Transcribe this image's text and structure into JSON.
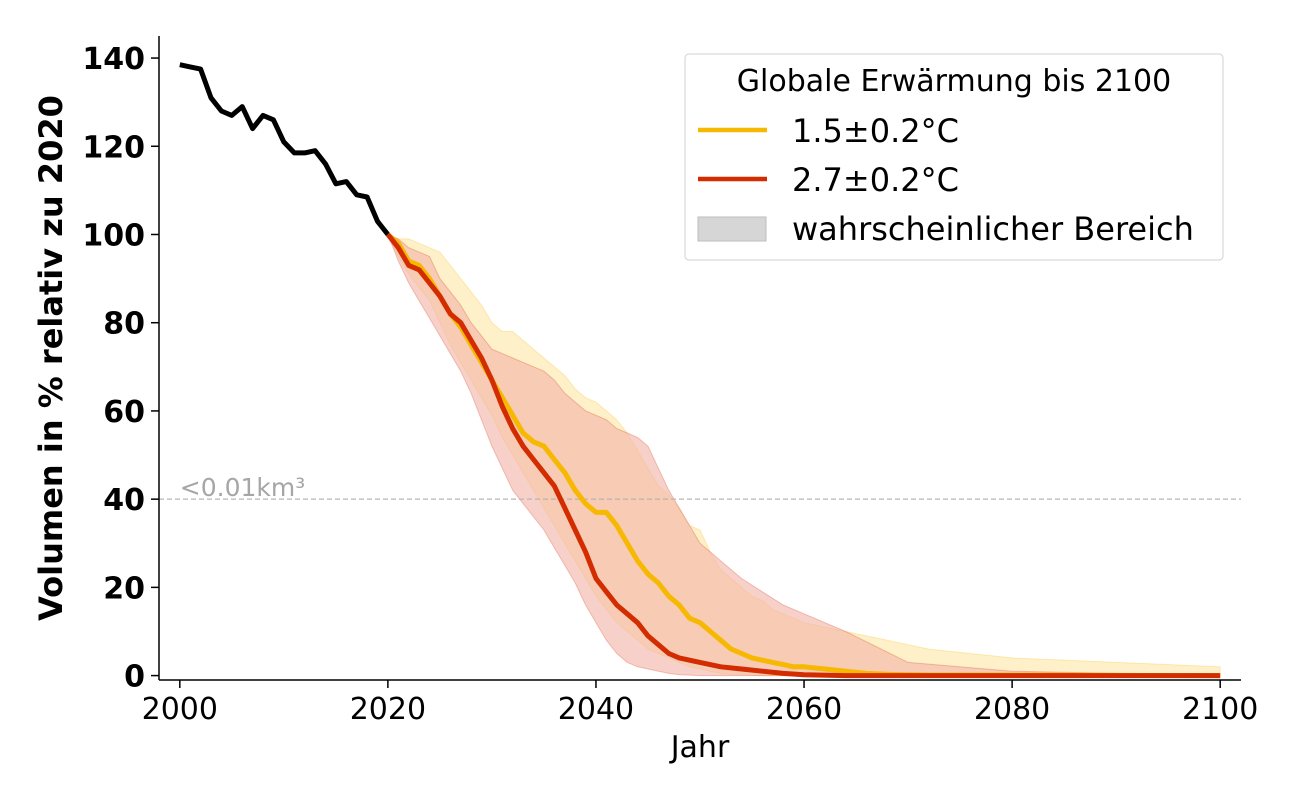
{
  "chart_data": {
    "type": "line",
    "title": "",
    "xlabel": "Jahr",
    "ylabel": "Volumen in % relativ zu 2020",
    "xlim": [
      1998,
      2102
    ],
    "ylim": [
      -1,
      145
    ],
    "xticks": [
      2000,
      2020,
      2040,
      2060,
      2080,
      2100
    ],
    "yticks": [
      0,
      20,
      40,
      60,
      80,
      100,
      120,
      140
    ],
    "grid": false,
    "legend": {
      "title": "Globale Erwärmung bis 2100",
      "placement": "top-right",
      "entries": [
        "1.5±0.2°C",
        "2.7±0.2°C",
        "wahrscheinlicher Bereich"
      ]
    },
    "reference_line": {
      "y": 40,
      "style": "dashed",
      "color": "#b5b5b5",
      "label": "<0.01km³"
    },
    "series": [
      {
        "name": "",
        "color": "#000000",
        "x": [
          2000,
          2001,
          2002,
          2003,
          2004,
          2005,
          2006,
          2007,
          2008,
          2009,
          2010,
          2011,
          2012,
          2013,
          2014,
          2015,
          2016,
          2017,
          2018,
          2019,
          2020
        ],
        "y": [
          138.5,
          138,
          137.5,
          131,
          128,
          127,
          129,
          124,
          127,
          126,
          121,
          118.5,
          118.5,
          119,
          116,
          111.5,
          112,
          109,
          108.5,
          103,
          100
        ]
      },
      {
        "name": "1.5±0.2°C",
        "color": "#f6b800",
        "fill": "#fde7a8",
        "x": [
          2020,
          2021,
          2022,
          2023,
          2024,
          2025,
          2026,
          2027,
          2028,
          2029,
          2030,
          2031,
          2032,
          2033,
          2034,
          2035,
          2036,
          2037,
          2038,
          2039,
          2040,
          2041,
          2042,
          2043,
          2044,
          2045,
          2046,
          2047,
          2048,
          2049,
          2050,
          2051,
          2052,
          2053,
          2054,
          2055,
          2056,
          2057,
          2058,
          2059,
          2060,
          2062,
          2064,
          2066,
          2068,
          2070,
          2072,
          2080,
          2090,
          2100
        ],
        "y": [
          100,
          98,
          94,
          93,
          90,
          86,
          82,
          79,
          75,
          71,
          67,
          63,
          59,
          55,
          53,
          52,
          49,
          46,
          42,
          39,
          37,
          37,
          34,
          30,
          26,
          23,
          21,
          18,
          16,
          13,
          12,
          10,
          8,
          6,
          5,
          4,
          3.5,
          3,
          2.5,
          2,
          2,
          1.5,
          1,
          0.5,
          0.3,
          0.2,
          0.1,
          0.1,
          0.05,
          0
        ],
        "lower": [
          100,
          95,
          91,
          88,
          85,
          80,
          75,
          71,
          67,
          63,
          59,
          54,
          50,
          46,
          42,
          38,
          34,
          30,
          26,
          22,
          18,
          15,
          12,
          10,
          8,
          6,
          5,
          4,
          3,
          2,
          1.5,
          1,
          0.5,
          0.3,
          0.2,
          0.1,
          0,
          0,
          0,
          0,
          0,
          0,
          0,
          0,
          0,
          0,
          0,
          0,
          0,
          0
        ],
        "upper": [
          100,
          99,
          99,
          98,
          97,
          96,
          93,
          90,
          87,
          84,
          80,
          78,
          78,
          76,
          74,
          72,
          70,
          68,
          65,
          63,
          62,
          60,
          58,
          55,
          51,
          47,
          43,
          41,
          38,
          34,
          33,
          28,
          24,
          22,
          20,
          18,
          17,
          15,
          14,
          13,
          12,
          11,
          10,
          9,
          8,
          7,
          6,
          4,
          3,
          2
        ]
      },
      {
        "name": "2.7±0.2°C",
        "color": "#d22c00",
        "fill": "#f2b4a8",
        "x": [
          2020,
          2021,
          2022,
          2023,
          2024,
          2025,
          2026,
          2027,
          2028,
          2029,
          2030,
          2031,
          2032,
          2033,
          2034,
          2035,
          2036,
          2037,
          2038,
          2039,
          2040,
          2041,
          2042,
          2043,
          2044,
          2045,
          2046,
          2047,
          2048,
          2049,
          2050,
          2052,
          2054,
          2056,
          2058,
          2060,
          2064,
          2070,
          2080,
          2090,
          2100
        ],
        "y": [
          100,
          97,
          93,
          92,
          89,
          86,
          82,
          80,
          76,
          72,
          67,
          61,
          56,
          52,
          49,
          46,
          43,
          38,
          33,
          28,
          22,
          19,
          16,
          14,
          12,
          9,
          7,
          5,
          4,
          3.5,
          3,
          2,
          1.5,
          1,
          0.5,
          0.2,
          0,
          0,
          0,
          0,
          0
        ],
        "lower": [
          100,
          94,
          89,
          85,
          81,
          77,
          73,
          69,
          64,
          58,
          52,
          47,
          42,
          39,
          36,
          33,
          29,
          25,
          21,
          16,
          12,
          8,
          5,
          3,
          2,
          1.5,
          1,
          0.5,
          0.2,
          0.1,
          0,
          0,
          0,
          0,
          0,
          0,
          0,
          0,
          0,
          0,
          0
        ],
        "upper": [
          100,
          99,
          97,
          96,
          95,
          90,
          87,
          84,
          80,
          77,
          74,
          73,
          72,
          71,
          70,
          69,
          67,
          64,
          62,
          60,
          59,
          58,
          56,
          55,
          54,
          52,
          47,
          42,
          38,
          34,
          30,
          26,
          22,
          19,
          16,
          14,
          10,
          3,
          1,
          0.5,
          0
        ]
      }
    ]
  }
}
